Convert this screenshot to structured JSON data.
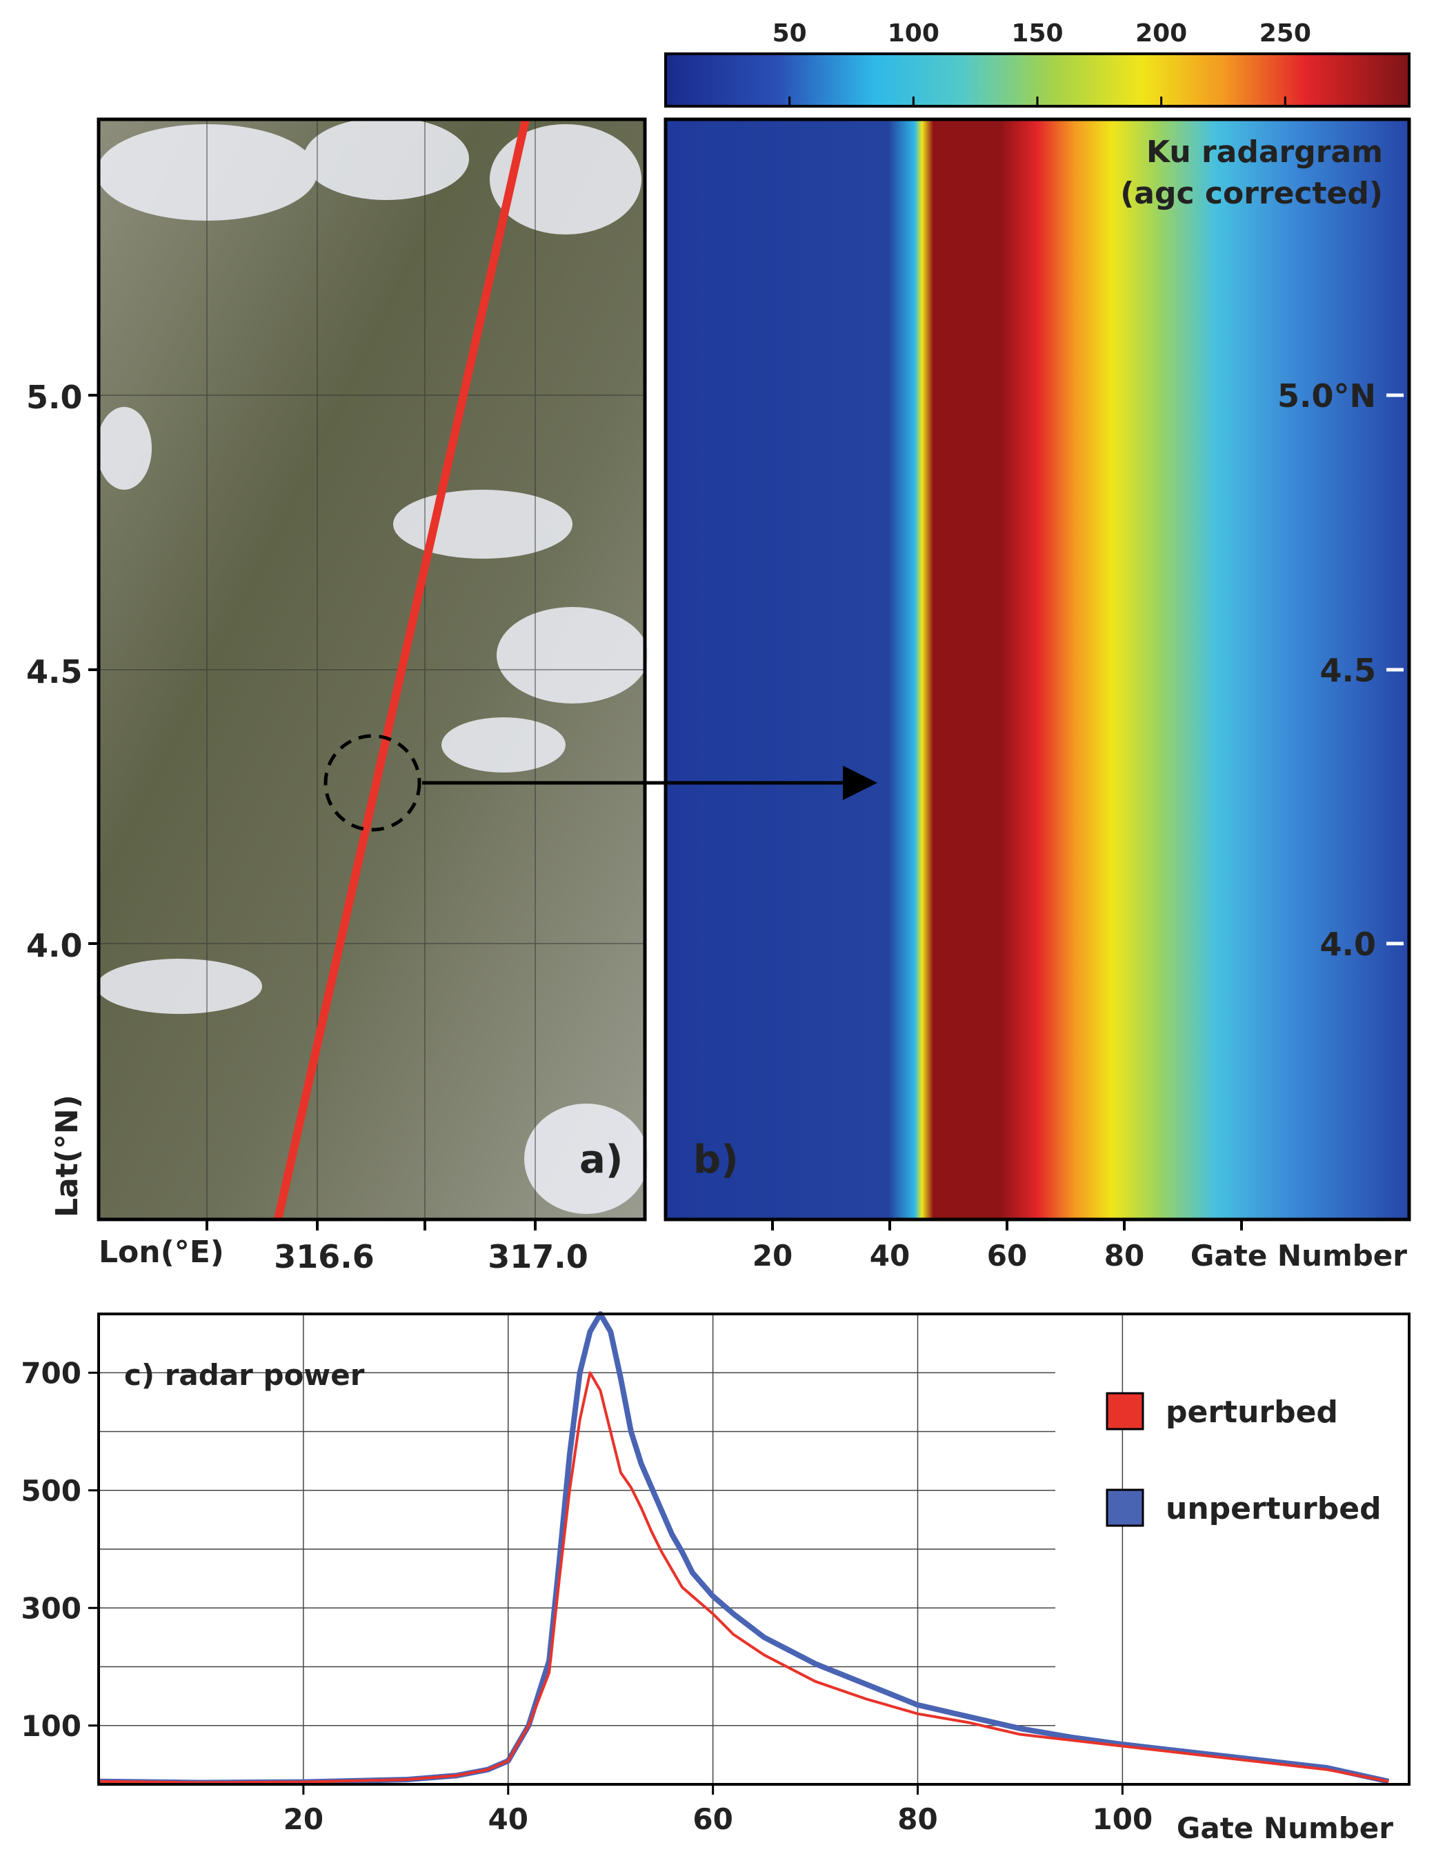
{
  "colorbar": {
    "ticks": [
      50,
      100,
      150,
      200,
      250
    ],
    "min": 0,
    "max": 300
  },
  "panel_a": {
    "label": "a)",
    "lat_label": "Lat(°N)",
    "lon_label": "Lon(°E)",
    "lat_ticks": [
      "5.0",
      "4.5",
      "4.0"
    ],
    "lon_ticks": [
      "316.6",
      "317.0"
    ]
  },
  "panel_b": {
    "label": "b)",
    "title_line1": "Ku radargram",
    "title_line2": "(agc corrected)",
    "lat_ticks": [
      "5.0°N",
      "4.5",
      "4.0"
    ],
    "gate_ticks": [
      "20",
      "40",
      "60",
      "80"
    ],
    "gate_label": "Gate Number"
  },
  "chart_data": {
    "type": "line",
    "title": "c) radar power",
    "xlabel": "Gate Number",
    "ylabel": "",
    "xlim": [
      0,
      128
    ],
    "ylim": [
      0,
      800
    ],
    "x_ticks": [
      20,
      40,
      60,
      80,
      100
    ],
    "y_ticks": [
      100,
      300,
      500,
      700
    ],
    "legend_position": "right",
    "series": [
      {
        "name": "perturbed",
        "color": "#e8332a",
        "x": [
          0,
          10,
          20,
          30,
          35,
          38,
          40,
          42,
          44,
          45,
          46,
          47,
          48,
          49,
          50,
          51,
          52,
          53,
          54,
          55,
          56,
          57,
          58,
          60,
          62,
          65,
          70,
          75,
          80,
          85,
          90,
          95,
          100,
          105,
          110,
          115,
          120,
          126
        ],
        "values": [
          5,
          3,
          4,
          8,
          15,
          25,
          40,
          100,
          190,
          350,
          500,
          620,
          700,
          670,
          600,
          530,
          505,
          470,
          430,
          395,
          365,
          335,
          320,
          290,
          255,
          220,
          175,
          145,
          120,
          105,
          85,
          75,
          65,
          55,
          45,
          35,
          25,
          5
        ]
      },
      {
        "name": "unperturbed",
        "color": "#4a64b4",
        "x": [
          0,
          10,
          20,
          30,
          35,
          38,
          40,
          42,
          44,
          45,
          46,
          47,
          48,
          49,
          50,
          51,
          52,
          53,
          54,
          55,
          56,
          57,
          58,
          60,
          62,
          65,
          70,
          75,
          80,
          85,
          90,
          95,
          100,
          105,
          110,
          115,
          120,
          126
        ],
        "values": [
          5,
          3,
          4,
          8,
          15,
          25,
          40,
          100,
          210,
          380,
          560,
          700,
          770,
          800,
          770,
          690,
          600,
          545,
          505,
          465,
          425,
          395,
          360,
          320,
          290,
          250,
          205,
          170,
          135,
          115,
          95,
          80,
          68,
          58,
          48,
          38,
          28,
          5
        ]
      }
    ]
  }
}
